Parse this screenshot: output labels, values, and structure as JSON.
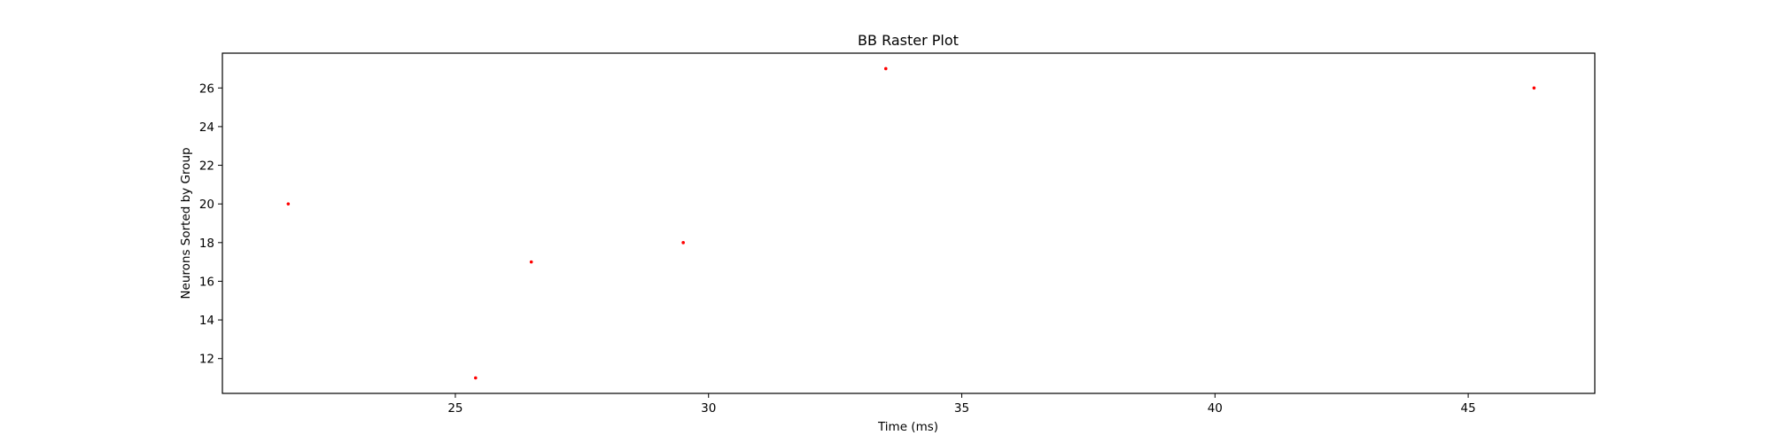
{
  "chart_data": {
    "type": "scatter",
    "title": "BB Raster Plot",
    "xlabel": "Time (ms)",
    "ylabel": "Neurons Sorted by Group",
    "xlim": [
      20.4,
      47.5
    ],
    "ylim": [
      10.2,
      27.8
    ],
    "x_ticks": [
      25,
      30,
      35,
      40,
      45
    ],
    "y_ticks": [
      12,
      14,
      16,
      18,
      20,
      22,
      24,
      26
    ],
    "grid": false,
    "marker_color": "#ff0000",
    "points": [
      {
        "x": 21.7,
        "y": 20
      },
      {
        "x": 25.4,
        "y": 11
      },
      {
        "x": 26.5,
        "y": 17
      },
      {
        "x": 29.5,
        "y": 18
      },
      {
        "x": 33.5,
        "y": 27
      },
      {
        "x": 46.3,
        "y": 26
      }
    ]
  }
}
